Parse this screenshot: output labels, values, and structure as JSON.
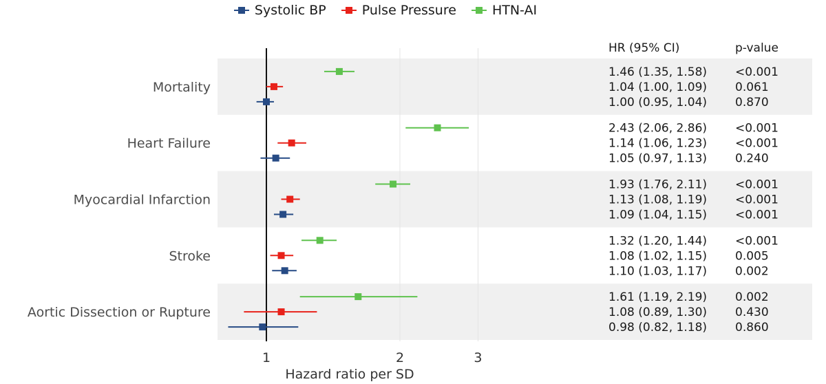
{
  "legend": {
    "items": [
      {
        "label": "Systolic BP",
        "color": "#274b85"
      },
      {
        "label": "Pulse Pressure",
        "color": "#e8221a"
      },
      {
        "label": "HTN-AI",
        "color": "#5fc24e"
      }
    ]
  },
  "table": {
    "hr_header": "HR (95% CI)",
    "p_header": "p-value"
  },
  "chart_data": {
    "type": "forest",
    "xlabel": "Hazard ratio per SD",
    "x_scale": "log",
    "xlim": [
      0.8,
      3.3
    ],
    "xticks": [
      {
        "value": 1,
        "label": "1"
      },
      {
        "value": 2,
        "label": "2"
      },
      {
        "value": 3,
        "label": "3"
      }
    ],
    "reference_line": 1,
    "series": [
      {
        "name": "HTN-AI",
        "color": "#5fc24e"
      },
      {
        "name": "Pulse Pressure",
        "color": "#e8221a"
      },
      {
        "name": "Systolic BP",
        "color": "#274b85"
      }
    ],
    "outcomes": [
      {
        "name": "Mortality",
        "rows": [
          {
            "series": "HTN-AI",
            "hr": 1.46,
            "lo": 1.35,
            "hi": 1.58,
            "hr_text": "1.46 (1.35, 1.58)",
            "p": "<0.001"
          },
          {
            "series": "Pulse Pressure",
            "hr": 1.04,
            "lo": 1.0,
            "hi": 1.09,
            "hr_text": "1.04 (1.00, 1.09)",
            "p": "0.061"
          },
          {
            "series": "Systolic BP",
            "hr": 1.0,
            "lo": 0.95,
            "hi": 1.04,
            "hr_text": "1.00 (0.95, 1.04)",
            "p": "0.870"
          }
        ]
      },
      {
        "name": "Heart Failure",
        "rows": [
          {
            "series": "HTN-AI",
            "hr": 2.43,
            "lo": 2.06,
            "hi": 2.86,
            "hr_text": "2.43 (2.06, 2.86)",
            "p": "<0.001"
          },
          {
            "series": "Pulse Pressure",
            "hr": 1.14,
            "lo": 1.06,
            "hi": 1.23,
            "hr_text": "1.14 (1.06, 1.23)",
            "p": "<0.001"
          },
          {
            "series": "Systolic BP",
            "hr": 1.05,
            "lo": 0.97,
            "hi": 1.13,
            "hr_text": "1.05 (0.97, 1.13)",
            "p": "0.240"
          }
        ]
      },
      {
        "name": "Myocardial Infarction",
        "rows": [
          {
            "series": "HTN-AI",
            "hr": 1.93,
            "lo": 1.76,
            "hi": 2.11,
            "hr_text": "1.93 (1.76, 2.11)",
            "p": "<0.001"
          },
          {
            "series": "Pulse Pressure",
            "hr": 1.13,
            "lo": 1.08,
            "hi": 1.19,
            "hr_text": "1.13 (1.08, 1.19)",
            "p": "<0.001"
          },
          {
            "series": "Systolic BP",
            "hr": 1.09,
            "lo": 1.04,
            "hi": 1.15,
            "hr_text": "1.09 (1.04, 1.15)",
            "p": "<0.001"
          }
        ]
      },
      {
        "name": "Stroke",
        "rows": [
          {
            "series": "HTN-AI",
            "hr": 1.32,
            "lo": 1.2,
            "hi": 1.44,
            "hr_text": "1.32 (1.20, 1.44)",
            "p": "<0.001"
          },
          {
            "series": "Pulse Pressure",
            "hr": 1.08,
            "lo": 1.02,
            "hi": 1.15,
            "hr_text": "1.08 (1.02, 1.15)",
            "p": "0.005"
          },
          {
            "series": "Systolic BP",
            "hr": 1.1,
            "lo": 1.03,
            "hi": 1.17,
            "hr_text": "1.10 (1.03, 1.17)",
            "p": "0.002"
          }
        ]
      },
      {
        "name": "Aortic Dissection or Rupture",
        "rows": [
          {
            "series": "HTN-AI",
            "hr": 1.61,
            "lo": 1.19,
            "hi": 2.19,
            "hr_text": "1.61 (1.19, 2.19)",
            "p": "0.002"
          },
          {
            "series": "Pulse Pressure",
            "hr": 1.08,
            "lo": 0.89,
            "hi": 1.3,
            "hr_text": "1.08 (0.89, 1.30)",
            "p": "0.430"
          },
          {
            "series": "Systolic BP",
            "hr": 0.98,
            "lo": 0.82,
            "hi": 1.18,
            "hr_text": "0.98 (0.82, 1.18)",
            "p": "0.860"
          }
        ]
      }
    ]
  }
}
